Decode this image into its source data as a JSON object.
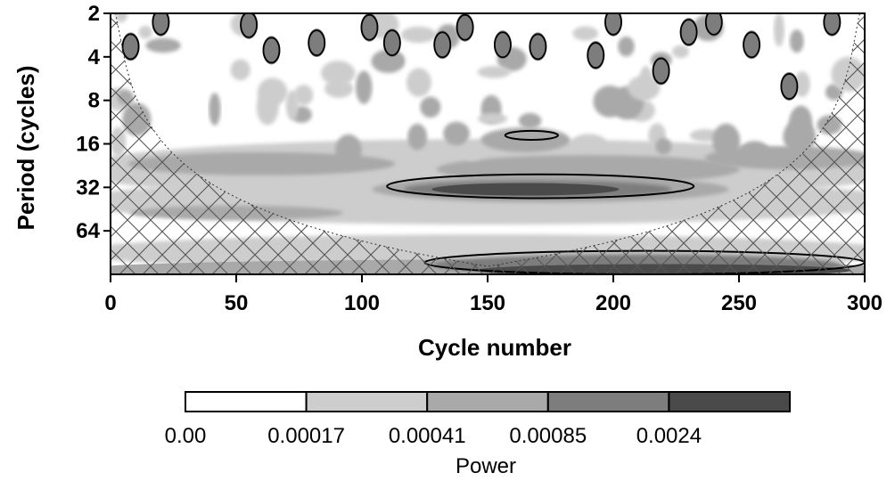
{
  "chart_data": {
    "type": "heatmap",
    "title": "",
    "xlabel": "Cycle number",
    "ylabel": "Period (cycles)",
    "x_ticks": [
      0,
      50,
      100,
      150,
      200,
      250,
      300
    ],
    "x_tick_labels": [
      "0",
      "50",
      "100",
      "150",
      "200",
      "250",
      "300"
    ],
    "xlim": [
      0,
      300
    ],
    "y_scale": "log2",
    "y_ticks": [
      2,
      4,
      8,
      16,
      32,
      64
    ],
    "y_tick_labels": [
      "2",
      "4",
      "8",
      "16",
      "32",
      "64"
    ],
    "ylim": [
      2,
      128
    ],
    "y_inverted": true,
    "colorbar": {
      "label": "Power",
      "levels": [
        0.0,
        0.00017,
        0.00041,
        0.00085,
        0.0024
      ],
      "level_labels": [
        "0.00",
        "0.00017",
        "0.00041",
        "0.00085",
        "0.0024"
      ],
      "colors": [
        "#ffffff",
        "#cdcdcd",
        "#a9a9a9",
        "#7d7d7d",
        "#4a4a4a"
      ]
    },
    "significant_regions": [
      {
        "x_range": [
          110,
          232
        ],
        "period_range": [
          26,
          38
        ]
      },
      {
        "x_range": [
          157,
          178
        ],
        "period_range": [
          13,
          15
        ]
      },
      {
        "x_range": [
          125,
          300
        ],
        "period_range": [
          88,
          128
        ]
      }
    ],
    "cone_of_influence": {
      "hatched": true
    }
  }
}
